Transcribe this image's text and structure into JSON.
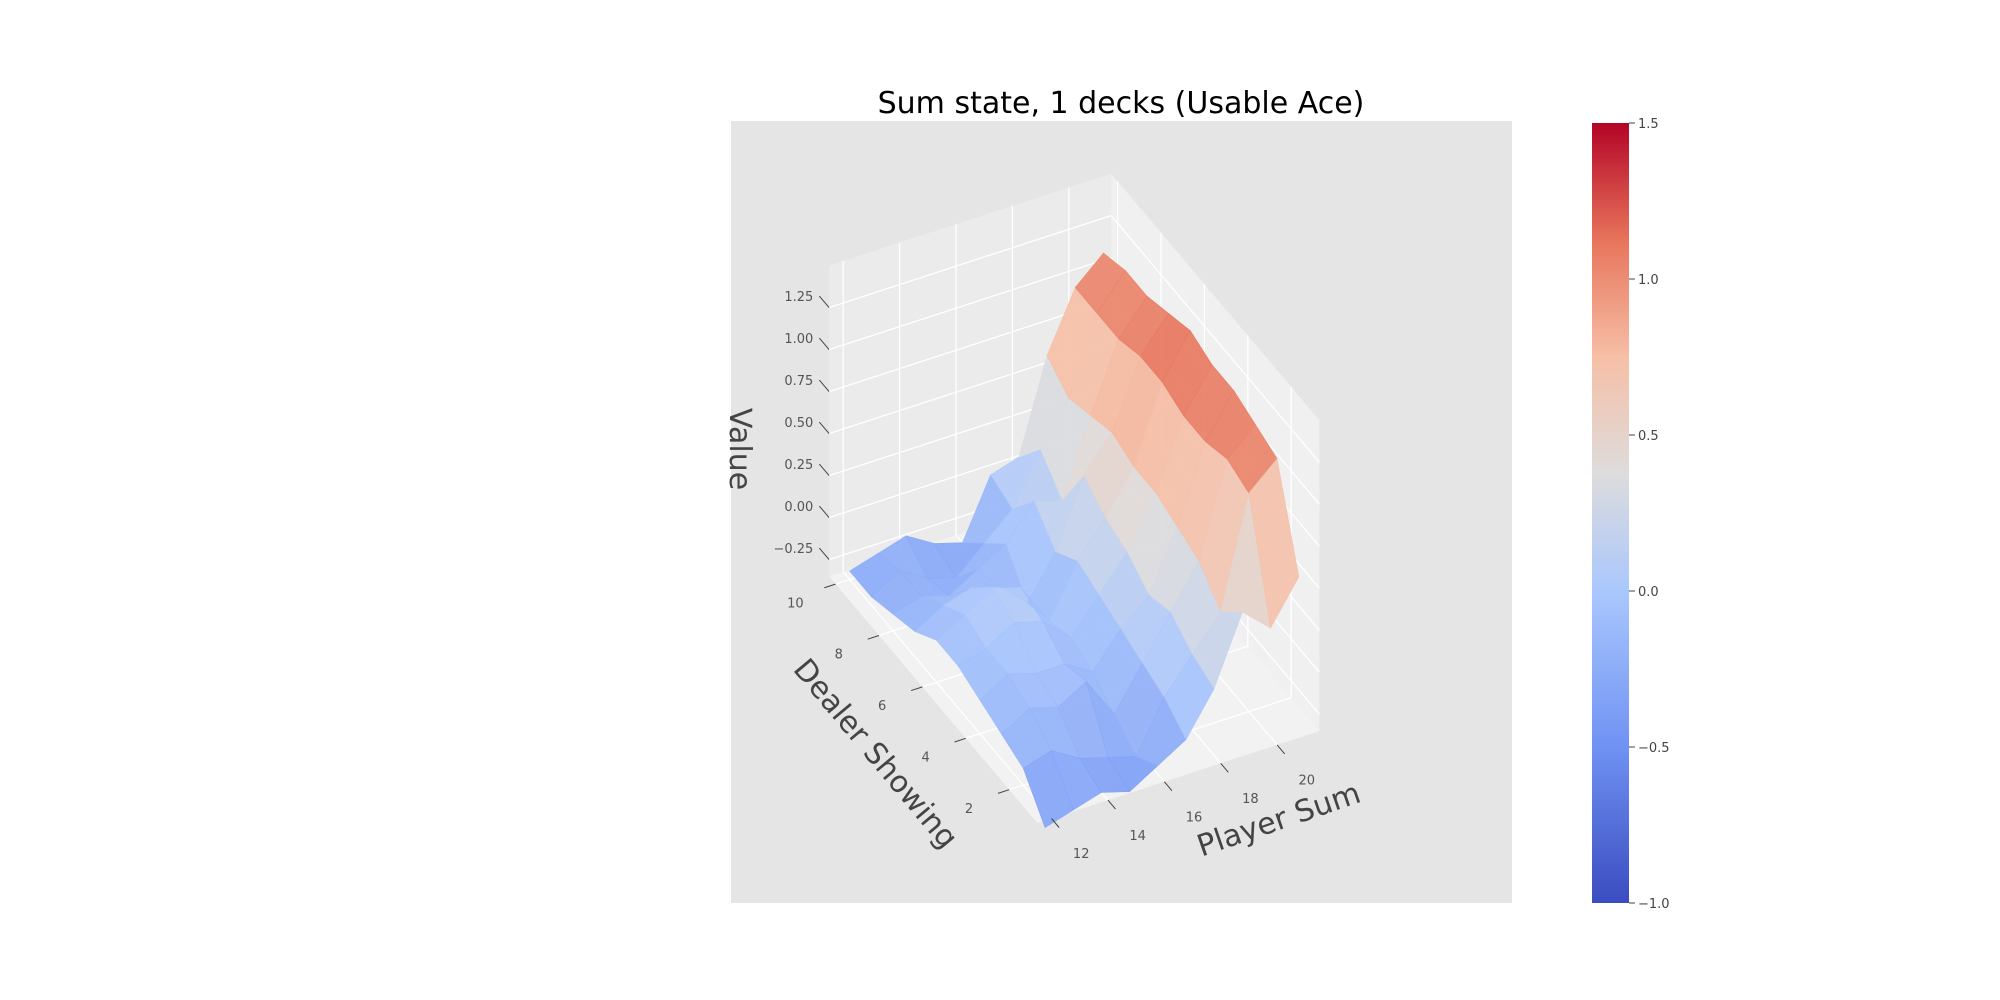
{
  "chart_data": {
    "type": "surface3d",
    "title": "Sum state, 1 decks (Usable Ace)",
    "xlabel": "Player Sum",
    "ylabel": "Dealer Showing",
    "zlabel": "Value",
    "x": [
      12,
      13,
      14,
      15,
      16,
      17,
      18,
      19,
      20,
      21
    ],
    "y": [
      1,
      2,
      3,
      4,
      5,
      6,
      7,
      8,
      9,
      10
    ],
    "x_ticks": [
      "12",
      "14",
      "16",
      "18",
      "20"
    ],
    "y_ticks": [
      "2",
      "4",
      "6",
      "8",
      "10"
    ],
    "z_ticks": [
      "−0.25",
      "0.00",
      "0.25",
      "0.50",
      "0.75",
      "1.00",
      "1.25"
    ],
    "z_tick_values": [
      -0.25,
      0,
      0.25,
      0.5,
      0.75,
      1.0,
      1.25
    ],
    "z": [
      [
        -0.45,
        -0.4,
        -0.35,
        -0.4,
        -0.3,
        -0.2,
        0.05,
        0.45,
        0.3,
        0.55
      ],
      [
        -0.25,
        -0.2,
        -0.3,
        -0.35,
        -0.4,
        -0.1,
        0.1,
        0.3,
        0.95,
        1.1
      ],
      [
        -0.2,
        -0.1,
        -0.15,
        -0.05,
        -0.3,
        -0.05,
        0.2,
        0.45,
        1.0,
        1.15
      ],
      [
        -0.15,
        -0.05,
        -0.1,
        -0.1,
        -0.2,
        0.0,
        0.15,
        0.5,
        0.95,
        1.2
      ],
      [
        -0.1,
        -0.05,
        0.05,
        0.0,
        -0.15,
        0.05,
        0.25,
        0.55,
        0.95,
        1.2
      ],
      [
        -0.1,
        0.0,
        0.1,
        0.05,
        -0.2,
        0.1,
        0.3,
        0.55,
        1.0,
        1.25
      ],
      [
        -0.2,
        -0.1,
        -0.05,
        -0.1,
        -0.25,
        0.0,
        0.4,
        0.6,
        1.0,
        1.2
      ],
      [
        -0.25,
        -0.2,
        -0.25,
        -0.15,
        -0.05,
        0.15,
        0.1,
        0.55,
        0.95,
        1.15
      ],
      [
        -0.3,
        -0.2,
        -0.3,
        -0.35,
        -0.2,
        -0.05,
        0.25,
        0.5,
        0.95,
        1.15
      ],
      [
        -0.3,
        -0.25,
        -0.2,
        -0.3,
        -0.35,
        0.0,
        0.05,
        0.6,
        0.95,
        1.1
      ]
    ],
    "colormap": "coolwarm",
    "colorbar": {
      "min": -1.0,
      "max": 1.5,
      "ticks": [
        "−1.0",
        "−0.5",
        "0.0",
        "0.5",
        "1.0",
        "1.5"
      ],
      "tick_values": [
        -1.0,
        -0.5,
        0.0,
        0.5,
        1.0,
        1.5
      ]
    },
    "grid": true,
    "pane_color": "#e5e5e5"
  }
}
